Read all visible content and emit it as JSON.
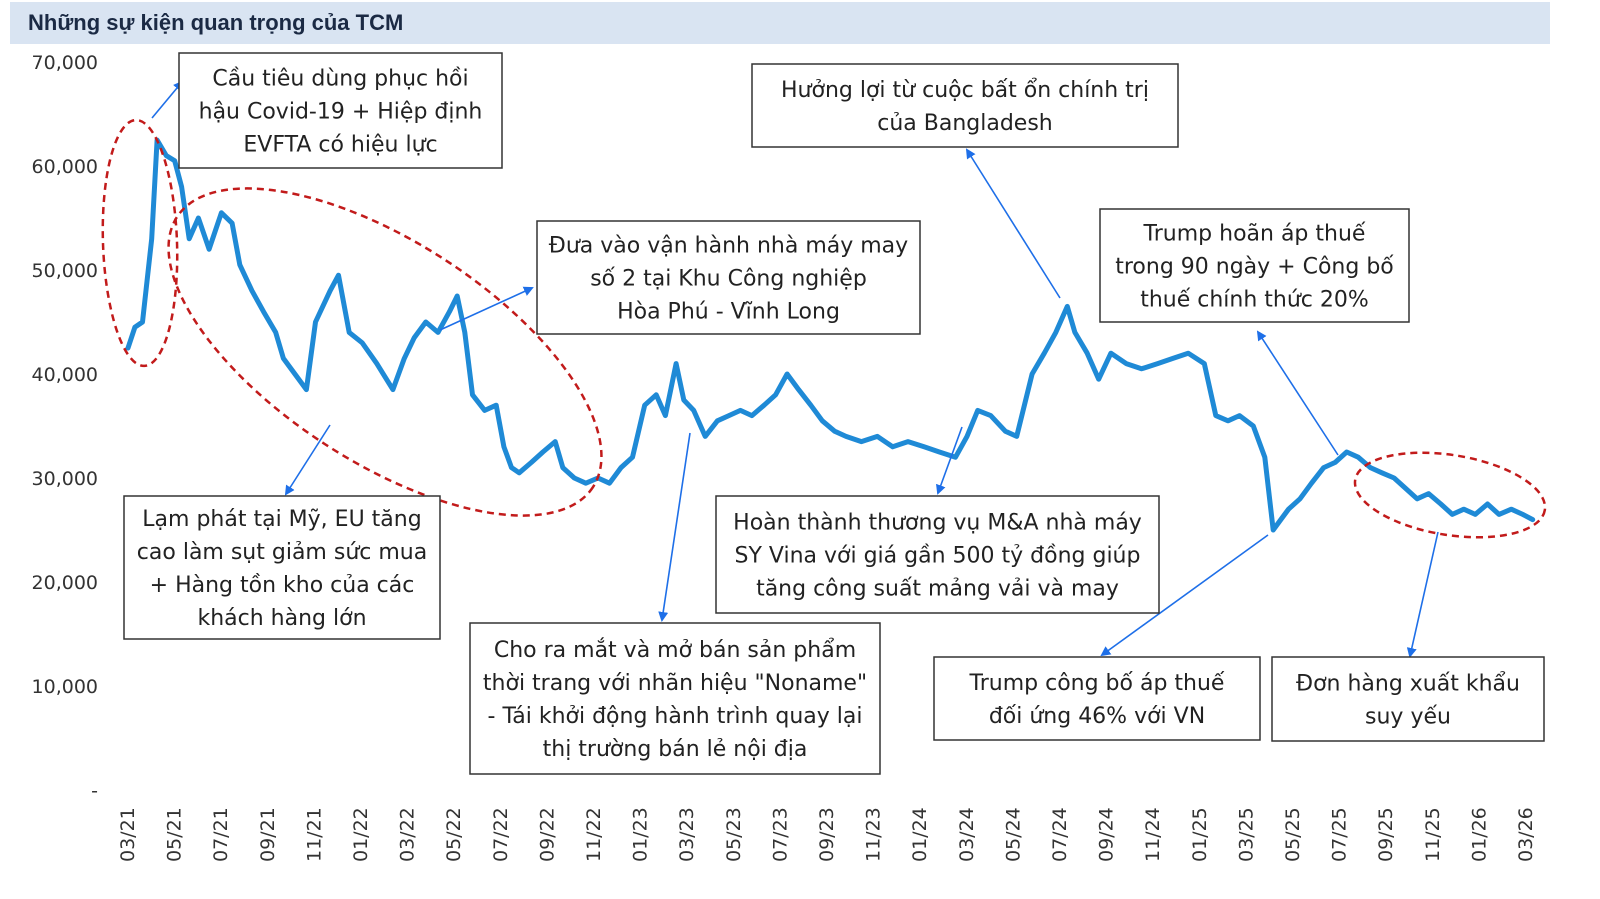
{
  "title": "Những sự kiện quan trọng của TCM",
  "chart_data": {
    "type": "line",
    "series_color": "#1f8ad6",
    "ylim": [
      0,
      70000
    ],
    "y_ticks": [
      "70,000",
      "60,000",
      "50,000",
      "40,000",
      "30,000",
      "20,000",
      "10,000",
      "-"
    ],
    "x_ticks": [
      "03/21",
      "05/21",
      "07/21",
      "09/21",
      "11/21",
      "01/22",
      "03/22",
      "05/22",
      "07/22",
      "09/22",
      "11/22",
      "01/23",
      "03/23",
      "05/23",
      "07/23",
      "09/23",
      "11/23",
      "01/24",
      "03/24",
      "05/24",
      "07/24",
      "09/24",
      "11/24",
      "01/25",
      "03/25",
      "05/25",
      "07/25",
      "09/25",
      "11/25",
      "01/26",
      "03/26"
    ],
    "points": [
      [
        "2021-03-01",
        42500
      ],
      [
        "2021-03-10",
        44500
      ],
      [
        "2021-03-20",
        45000
      ],
      [
        "2021-04-01",
        53000
      ],
      [
        "2021-04-08",
        62500
      ],
      [
        "2021-04-20",
        61000
      ],
      [
        "2021-05-01",
        60500
      ],
      [
        "2021-05-10",
        58000
      ],
      [
        "2021-05-20",
        53000
      ],
      [
        "2021-06-01",
        55000
      ],
      [
        "2021-06-15",
        52000
      ],
      [
        "2021-07-01",
        55500
      ],
      [
        "2021-07-15",
        54500
      ],
      [
        "2021-07-25",
        50500
      ],
      [
        "2021-08-10",
        48000
      ],
      [
        "2021-08-25",
        46000
      ],
      [
        "2021-09-10",
        44000
      ],
      [
        "2021-09-20",
        41500
      ],
      [
        "2021-10-05",
        40000
      ],
      [
        "2021-10-20",
        38500
      ],
      [
        "2021-11-01",
        45000
      ],
      [
        "2021-11-20",
        48000
      ],
      [
        "2021-12-01",
        49500
      ],
      [
        "2021-12-15",
        44000
      ],
      [
        "2022-01-01",
        43000
      ],
      [
        "2022-01-20",
        41000
      ],
      [
        "2022-02-10",
        38500
      ],
      [
        "2022-02-25",
        41500
      ],
      [
        "2022-03-10",
        43500
      ],
      [
        "2022-03-25",
        45000
      ],
      [
        "2022-04-10",
        44000
      ],
      [
        "2022-04-25",
        46000
      ],
      [
        "2022-05-05",
        47500
      ],
      [
        "2022-05-15",
        44000
      ],
      [
        "2022-05-25",
        38000
      ],
      [
        "2022-06-10",
        36500
      ],
      [
        "2022-06-25",
        37000
      ],
      [
        "2022-07-05",
        33000
      ],
      [
        "2022-07-15",
        31000
      ],
      [
        "2022-07-25",
        30500
      ],
      [
        "2022-08-10",
        31500
      ],
      [
        "2022-08-25",
        32500
      ],
      [
        "2022-09-10",
        33500
      ],
      [
        "2022-09-20",
        31000
      ],
      [
        "2022-10-05",
        30000
      ],
      [
        "2022-10-20",
        29500
      ],
      [
        "2022-11-05",
        30000
      ],
      [
        "2022-11-20",
        29500
      ],
      [
        "2022-12-05",
        31000
      ],
      [
        "2022-12-20",
        32000
      ],
      [
        "2023-01-05",
        37000
      ],
      [
        "2023-01-20",
        38000
      ],
      [
        "2023-02-01",
        36000
      ],
      [
        "2023-02-15",
        41000
      ],
      [
        "2023-02-25",
        37500
      ],
      [
        "2023-03-10",
        36500
      ],
      [
        "2023-03-25",
        34000
      ],
      [
        "2023-04-10",
        35500
      ],
      [
        "2023-04-25",
        36000
      ],
      [
        "2023-05-10",
        36500
      ],
      [
        "2023-05-25",
        36000
      ],
      [
        "2023-06-10",
        37000
      ],
      [
        "2023-06-25",
        38000
      ],
      [
        "2023-07-10",
        40000
      ],
      [
        "2023-07-25",
        38500
      ],
      [
        "2023-08-10",
        37000
      ],
      [
        "2023-08-25",
        35500
      ],
      [
        "2023-09-10",
        34500
      ],
      [
        "2023-09-25",
        34000
      ],
      [
        "2023-10-15",
        33500
      ],
      [
        "2023-11-05",
        34000
      ],
      [
        "2023-11-25",
        33000
      ],
      [
        "2023-12-15",
        33500
      ],
      [
        "2024-01-05",
        33000
      ],
      [
        "2024-01-25",
        32500
      ],
      [
        "2024-02-15",
        32000
      ],
      [
        "2024-03-01",
        34000
      ],
      [
        "2024-03-15",
        36500
      ],
      [
        "2024-04-01",
        36000
      ],
      [
        "2024-04-20",
        34500
      ],
      [
        "2024-05-05",
        34000
      ],
      [
        "2024-05-25",
        40000
      ],
      [
        "2024-06-10",
        42000
      ],
      [
        "2024-06-25",
        44000
      ],
      [
        "2024-07-10",
        46500
      ],
      [
        "2024-07-20",
        44000
      ],
      [
        "2024-08-05",
        42000
      ],
      [
        "2024-08-20",
        39500
      ],
      [
        "2024-09-05",
        42000
      ],
      [
        "2024-09-25",
        41000
      ],
      [
        "2024-10-15",
        40500
      ],
      [
        "2024-11-05",
        41000
      ],
      [
        "2024-11-25",
        41500
      ],
      [
        "2024-12-15",
        42000
      ],
      [
        "2025-01-05",
        41000
      ],
      [
        "2025-01-20",
        36000
      ],
      [
        "2025-02-05",
        35500
      ],
      [
        "2025-02-20",
        36000
      ],
      [
        "2025-03-10",
        35000
      ],
      [
        "2025-03-25",
        32000
      ],
      [
        "2025-04-05",
        25000
      ],
      [
        "2025-04-15",
        26000
      ],
      [
        "2025-04-25",
        27000
      ],
      [
        "2025-05-10",
        28000
      ],
      [
        "2025-05-25",
        29500
      ],
      [
        "2025-06-10",
        31000
      ],
      [
        "2025-06-25",
        31500
      ],
      [
        "2025-07-10",
        32500
      ],
      [
        "2025-07-25",
        32000
      ],
      [
        "2025-08-10",
        31000
      ],
      [
        "2025-08-25",
        30500
      ],
      [
        "2025-09-10",
        30000
      ],
      [
        "2025-09-25",
        29000
      ],
      [
        "2025-10-10",
        28000
      ],
      [
        "2025-10-25",
        28500
      ],
      [
        "2025-11-10",
        27500
      ],
      [
        "2025-11-25",
        26500
      ],
      [
        "2025-12-10",
        27000
      ],
      [
        "2025-12-25",
        26500
      ],
      [
        "2026-01-10",
        27500
      ],
      [
        "2026-01-25",
        26500
      ],
      [
        "2026-02-10",
        27000
      ],
      [
        "2026-02-25",
        26500
      ],
      [
        "2026-03-10",
        26000
      ]
    ]
  },
  "annotations": [
    {
      "id": "covid",
      "lines": [
        "Cầu tiêu dùng phục hồi",
        "hậu Covid-19 + Hiệp định",
        "EVFTA có hiệu lực"
      ]
    },
    {
      "id": "inflation",
      "lines": [
        "Lạm phát tại Mỹ, EU tăng",
        "cao làm sụt giảm sức mua",
        "+ Hàng tồn kho của các",
        "khách hàng lớn"
      ]
    },
    {
      "id": "factory",
      "lines": [
        "Đưa vào vận hành nhà máy may",
        "số 2 tại Khu Công nghiệp",
        "Hòa Phú - Vĩnh Long"
      ]
    },
    {
      "id": "noname",
      "lines": [
        "Cho ra mắt và mở bán sản phẩm",
        "thời trang với nhãn hiệu \"Noname\"",
        "- Tái khởi động hành trình quay lại",
        "thị trường bán lẻ nội địa"
      ]
    },
    {
      "id": "bangladesh",
      "lines": [
        "Hưởng lợi từ cuộc bất ổn chính trị",
        "của Bangladesh"
      ]
    },
    {
      "id": "mna",
      "lines": [
        "Hoàn thành thương vụ M&A nhà máy",
        "SY Vina với giá gần 500 tỷ đồng giúp",
        "tăng công suất mảng vải và may"
      ]
    },
    {
      "id": "trump90",
      "lines": [
        "Trump hoãn áp thuế",
        "trong 90 ngày + Công bố",
        "thuế chính thức 20%"
      ]
    },
    {
      "id": "trump46",
      "lines": [
        "Trump công bố áp thuế",
        "đối ứng 46% với VN"
      ]
    },
    {
      "id": "exports",
      "lines": [
        "Đơn hàng xuất khẩu",
        "suy yếu"
      ]
    }
  ]
}
